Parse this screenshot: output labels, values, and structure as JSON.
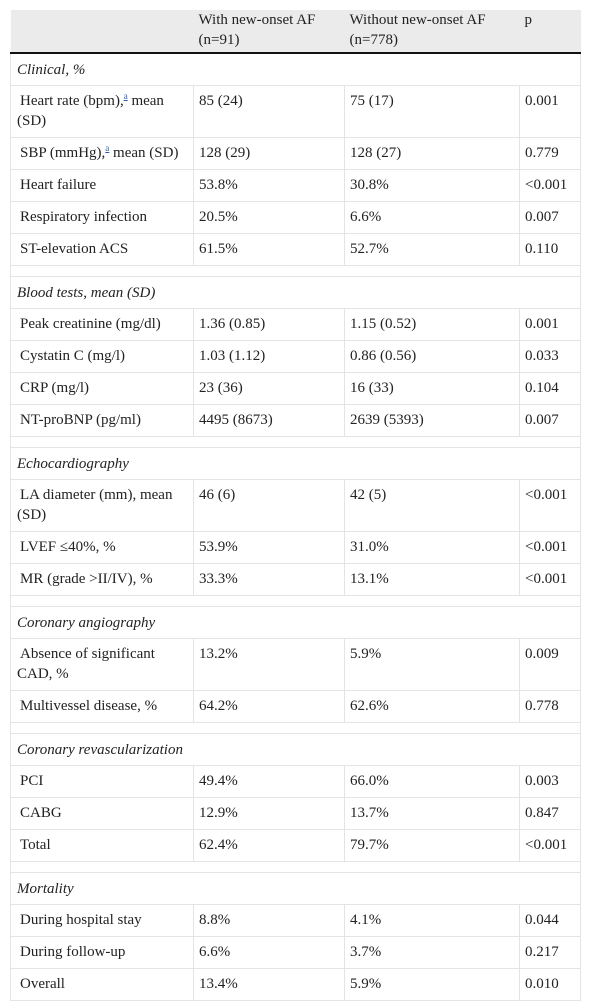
{
  "header": {
    "col1": "",
    "col2": "With new-onset AF (n=91)",
    "col3": "Without new-onset AF (n=778)",
    "col4": "p"
  },
  "sections": [
    {
      "title": "Clinical, %",
      "rows": [
        {
          "label": "Heart rate (bpm),",
          "footnote": "a",
          "label_suffix": " mean (SD)",
          "with": "85 (24)",
          "without": "75 (17)",
          "p": "0.001"
        },
        {
          "label": "SBP (mmHg),",
          "footnote": "a",
          "label_suffix": " mean (SD)",
          "with": "128 (29)",
          "without": "128 (27)",
          "p": "0.779"
        },
        {
          "label": "Heart failure",
          "with": "53.8%",
          "without": "30.8%",
          "p": "<0.001"
        },
        {
          "label": "Respiratory infection",
          "with": "20.5%",
          "without": "6.6%",
          "p": "0.007"
        },
        {
          "label": "ST-elevation ACS",
          "with": "61.5%",
          "without": "52.7%",
          "p": "0.110"
        }
      ]
    },
    {
      "title": "Blood tests, mean (SD)",
      "rows": [
        {
          "label": "Peak creatinine (mg/dl)",
          "with": "1.36 (0.85)",
          "without": "1.15 (0.52)",
          "p": "0.001"
        },
        {
          "label": "Cystatin C (mg/l)",
          "with": "1.03 (1.12)",
          "without": "0.86 (0.56)",
          "p": "0.033"
        },
        {
          "label": "CRP (mg/l)",
          "with": "23 (36)",
          "without": "16 (33)",
          "p": "0.104"
        },
        {
          "label": "NT-proBNP (pg/ml)",
          "with": "4495 (8673)",
          "without": "2639 (5393)",
          "p": "0.007"
        }
      ]
    },
    {
      "title": "Echocardiography",
      "rows": [
        {
          "label": "LA diameter (mm), mean (SD)",
          "with": "46 (6)",
          "without": "42 (5)",
          "p": "<0.001"
        },
        {
          "label": "LVEF ≤40%, %",
          "with": "53.9%",
          "without": "31.0%",
          "p": "<0.001"
        },
        {
          "label": "MR (grade >II/IV), %",
          "with": "33.3%",
          "without": "13.1%",
          "p": "<0.001"
        }
      ]
    },
    {
      "title": "Coronary angiography",
      "rows": [
        {
          "label": "Absence of significant CAD, %",
          "with": "13.2%",
          "without": "5.9%",
          "p": "0.009"
        },
        {
          "label": "Multivessel disease, %",
          "with": "64.2%",
          "without": "62.6%",
          "p": "0.778"
        }
      ]
    },
    {
      "title": "Coronary revascularization",
      "rows": [
        {
          "label": "PCI",
          "with": "49.4%",
          "without": "66.0%",
          "p": "0.003"
        },
        {
          "label": "CABG",
          "with": "12.9%",
          "without": "13.7%",
          "p": "0.847"
        },
        {
          "label": "Total",
          "with": "62.4%",
          "without": "79.7%",
          "p": "<0.001"
        }
      ]
    },
    {
      "title": "Mortality",
      "rows": [
        {
          "label": "During hospital stay",
          "with": "8.8%",
          "without": "4.1%",
          "p": "0.044"
        },
        {
          "label": "During follow-up",
          "with": "6.6%",
          "without": "3.7%",
          "p": "0.217"
        },
        {
          "label": "Overall",
          "with": "13.4%",
          "without": "5.9%",
          "p": "0.010"
        }
      ]
    }
  ]
}
